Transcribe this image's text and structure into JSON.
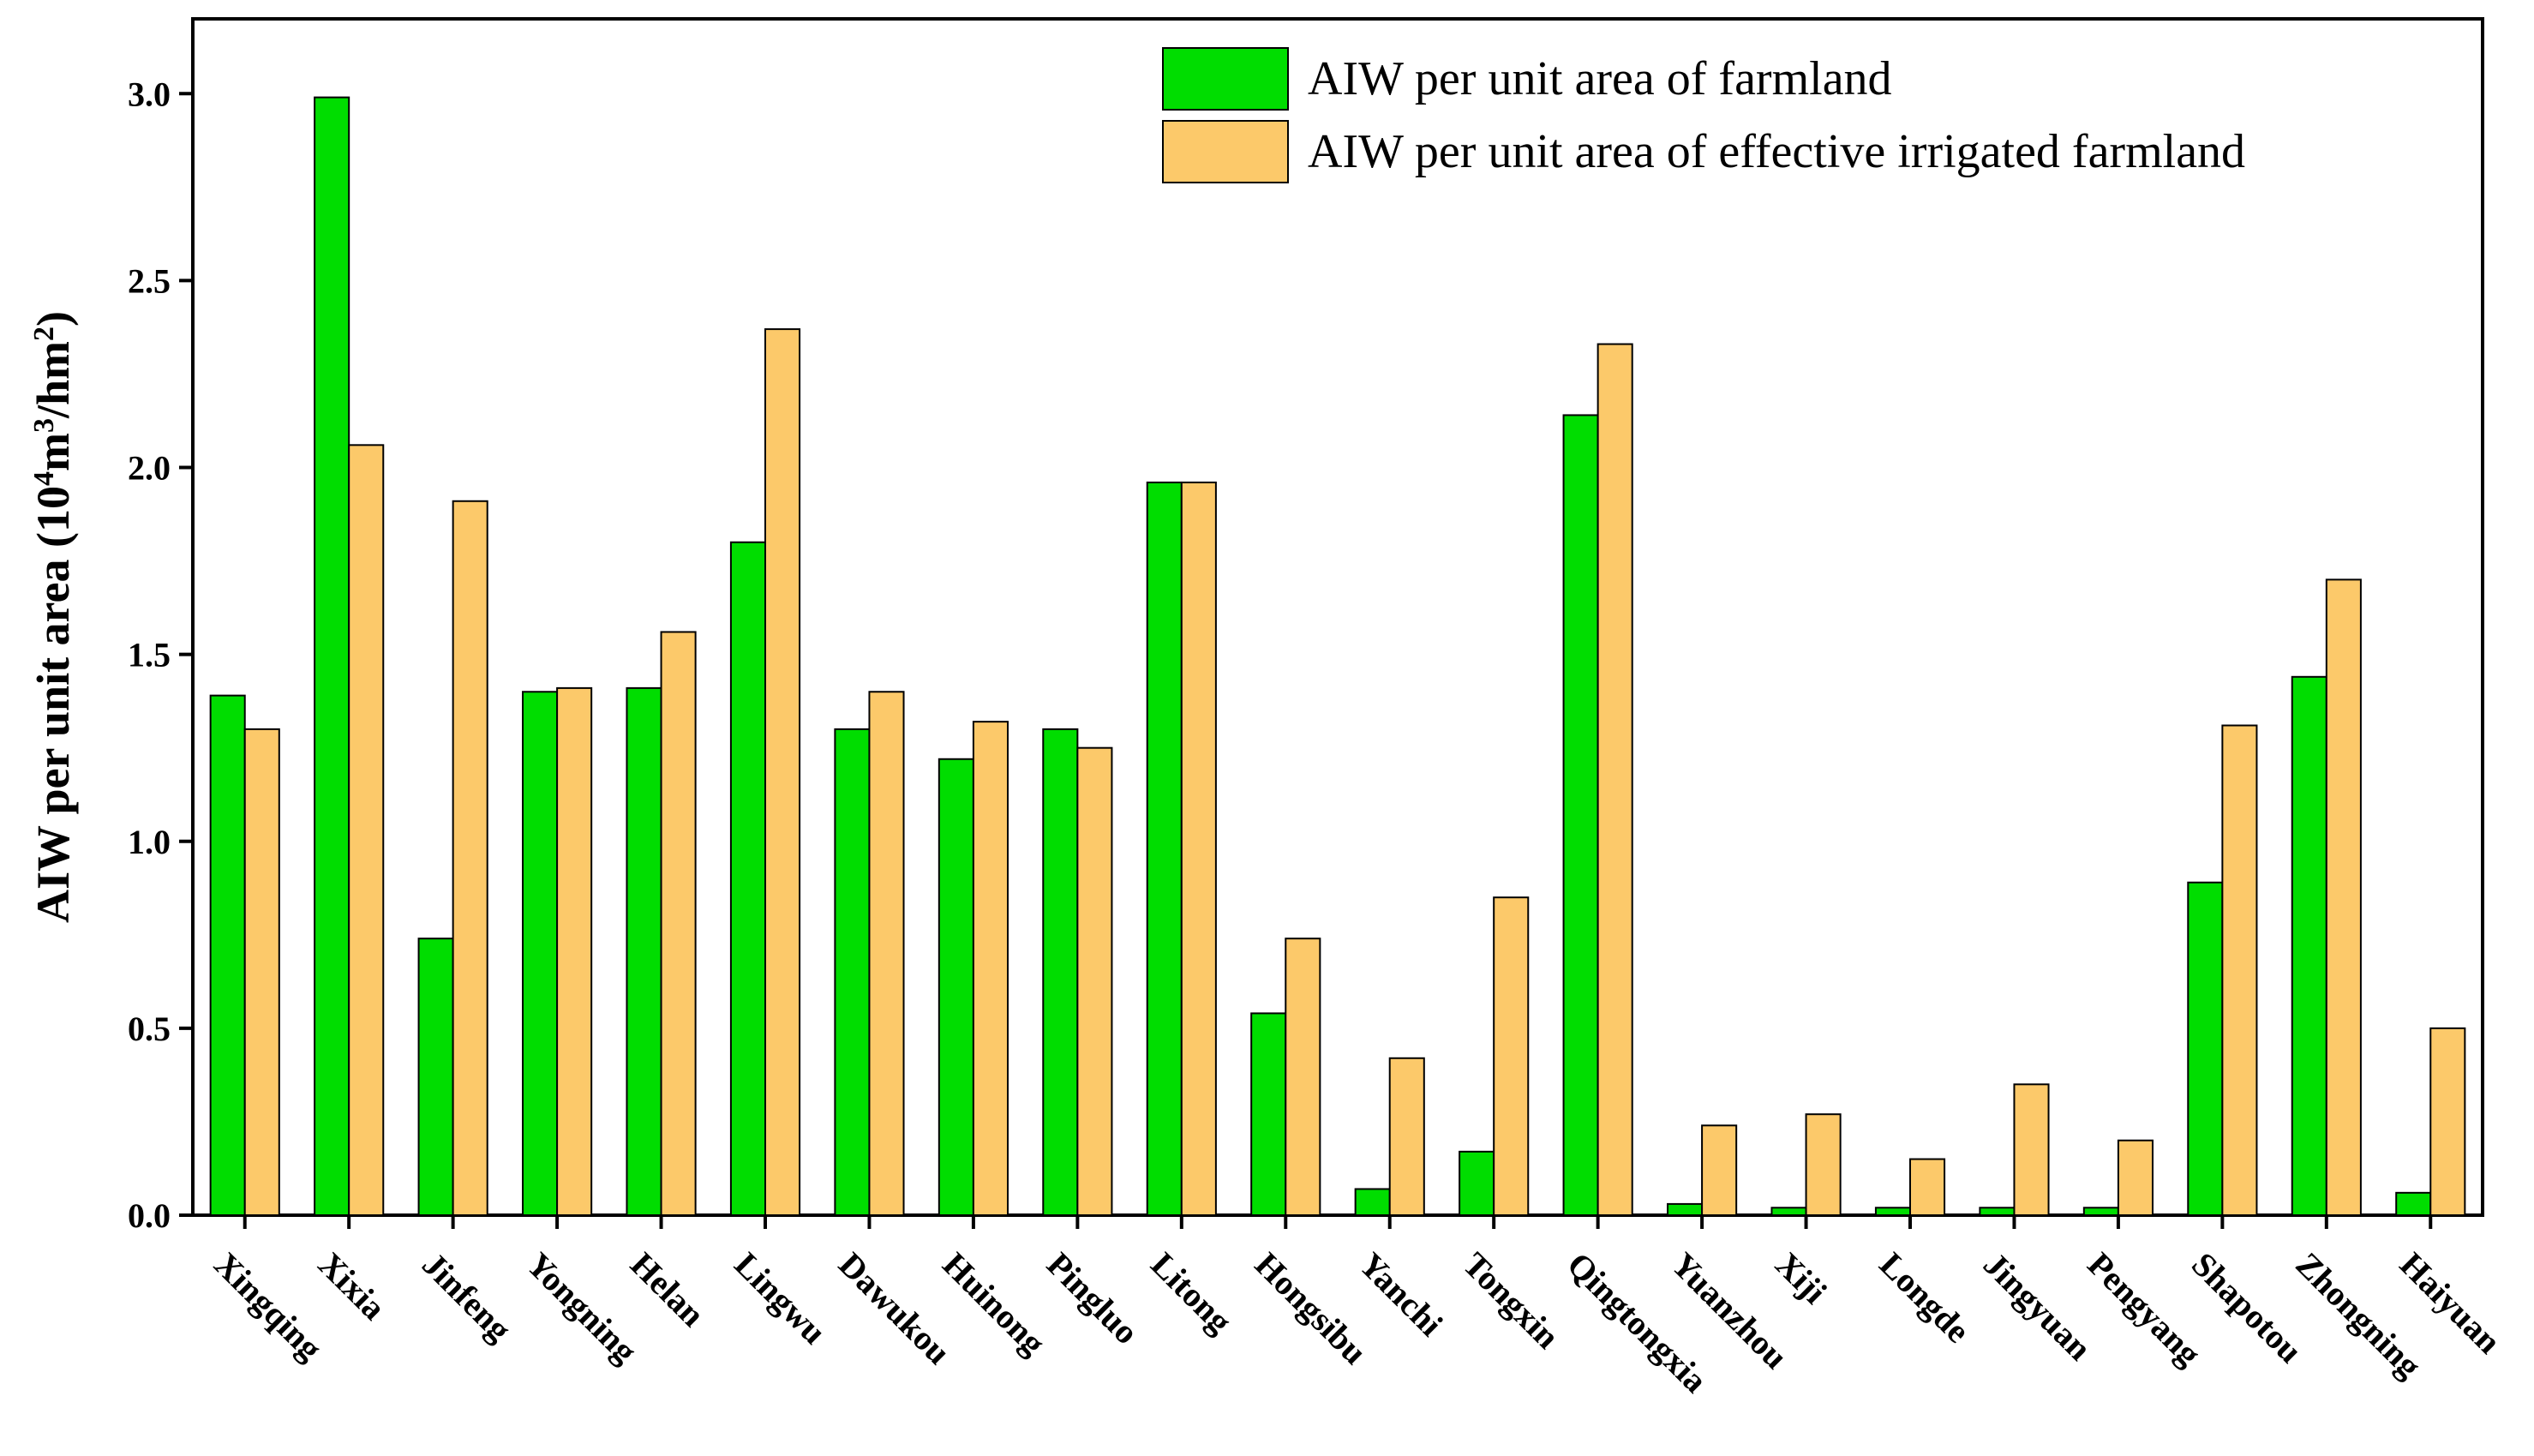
{
  "chart_data": {
    "type": "bar",
    "title": "",
    "xlabel": "",
    "ylabel": "AIW per unit area (10⁴m³/hm²)",
    "ylabel_parts": {
      "main": "AIW per unit area (10",
      "sup1": "4",
      "mid1": "m",
      "sup2": "3",
      "mid2": "/hm",
      "sup3": "2",
      "end": ")"
    },
    "ylim": [
      0,
      3.2
    ],
    "yticks": [
      0.0,
      0.5,
      1.0,
      1.5,
      2.0,
      2.5,
      3.0
    ],
    "ytick_labels": [
      "0.0",
      "0.5",
      "1.0",
      "1.5",
      "2.0",
      "2.5",
      "3.0"
    ],
    "legend_position": "top-right",
    "categories": [
      "Xingqing",
      "Xixia",
      "Jinfeng",
      "Yongning",
      "Helan",
      "Lingwu",
      "Dawukou",
      "Huinong",
      "Pingluo",
      "Litong",
      "Hongsibu",
      "Yanchi",
      "Tongxin",
      "Qingtongxia",
      "Yuanzhou",
      "Xiji",
      "Longde",
      "Jingyuan",
      "Pengyang",
      "Shapotou",
      "Zhongning",
      "Haiyuan"
    ],
    "series": [
      {
        "name": "AIW per unit area of farmland",
        "color": "#00dd00",
        "values": [
          1.39,
          2.99,
          0.74,
          1.4,
          1.41,
          1.8,
          1.3,
          1.22,
          1.3,
          1.96,
          0.54,
          0.07,
          0.17,
          2.14,
          0.03,
          0.02,
          0.02,
          0.02,
          0.02,
          0.89,
          1.44,
          0.06
        ]
      },
      {
        "name": "AIW per unit area of effective irrigated farmland",
        "color": "#fcc96a",
        "values": [
          1.3,
          2.06,
          1.91,
          1.41,
          1.56,
          2.37,
          1.4,
          1.32,
          1.25,
          1.96,
          0.74,
          0.42,
          0.85,
          2.33,
          0.24,
          0.27,
          0.15,
          0.35,
          0.2,
          1.31,
          1.7,
          0.5
        ]
      }
    ]
  }
}
